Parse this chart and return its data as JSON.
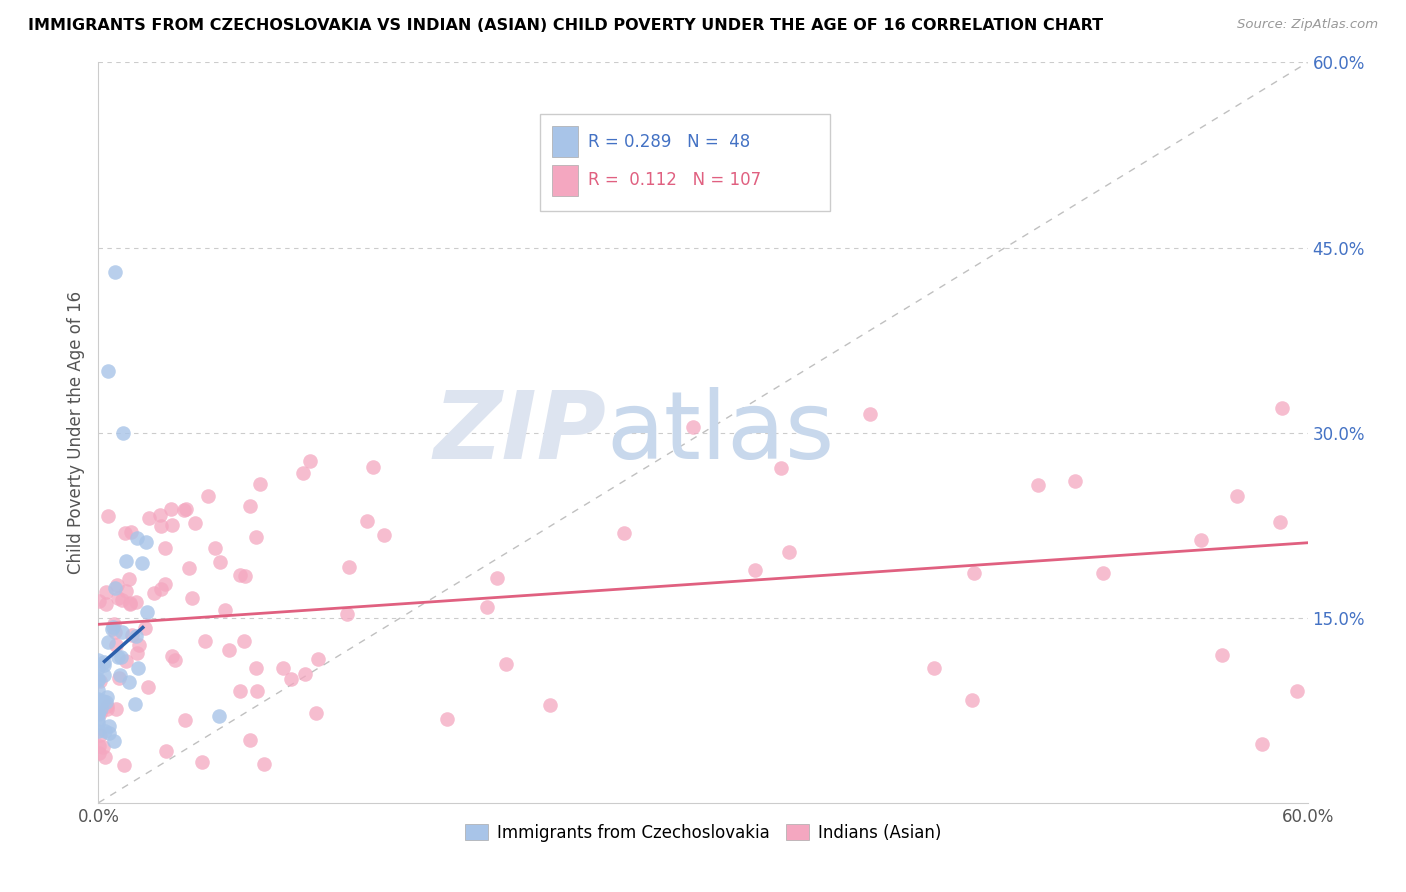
{
  "title": "IMMIGRANTS FROM CZECHOSLOVAKIA VS INDIAN (ASIAN) CHILD POVERTY UNDER THE AGE OF 16 CORRELATION CHART",
  "source": "Source: ZipAtlas.com",
  "ylabel": "Child Poverty Under the Age of 16",
  "xlim": [
    0.0,
    0.6
  ],
  "ylim": [
    0.0,
    0.6
  ],
  "blue_R": 0.289,
  "blue_N": 48,
  "pink_R": 0.112,
  "pink_N": 107,
  "blue_color": "#a8c4e8",
  "pink_color": "#f4a7c0",
  "blue_line_color": "#2b5fac",
  "pink_line_color": "#e06080",
  "legend_blue_label": "Immigrants from Czechoslovakia",
  "legend_pink_label": "Indians (Asian)",
  "grid_color": "#cccccc",
  "diag_color": "#c0c0c0"
}
